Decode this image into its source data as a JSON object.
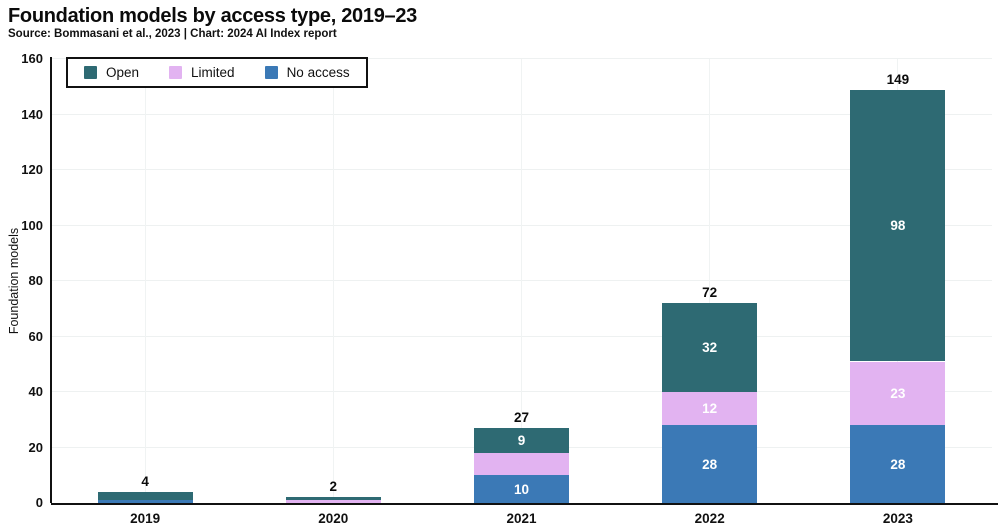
{
  "chart_data": {
    "type": "bar",
    "stacked": true,
    "title": "Foundation models by access type, 2019–23",
    "subtitle": "Source: Bommasani et al., 2023 | Chart: 2024 AI Index report",
    "ylabel": "Foundation models",
    "categories": [
      "2019",
      "2020",
      "2021",
      "2022",
      "2023"
    ],
    "series": [
      {
        "name": "No access",
        "color": "#3b79b6",
        "values": [
          1,
          0,
          10,
          28,
          28
        ]
      },
      {
        "name": "Limited",
        "color": "#e2b3f1",
        "values": [
          0,
          1,
          8,
          12,
          23
        ]
      },
      {
        "name": "Open",
        "color": "#2e6a73",
        "values": [
          3,
          1,
          9,
          32,
          98
        ]
      }
    ],
    "totals": [
      4,
      2,
      27,
      72,
      149
    ],
    "ylim": [
      0,
      160
    ],
    "yticks": [
      0,
      20,
      40,
      60,
      80,
      100,
      120,
      140,
      160
    ],
    "grid": true,
    "legend_position": "top-left-inside",
    "legend_order": [
      "Open",
      "Limited",
      "No access"
    ],
    "colors": {
      "open": "#2e6a73",
      "limited": "#e2b3f1",
      "no_access": "#3b79b6",
      "axis": "#111111",
      "gridline": "#eef1f1",
      "segment_label": "#ffffff",
      "text": "#111111"
    }
  }
}
